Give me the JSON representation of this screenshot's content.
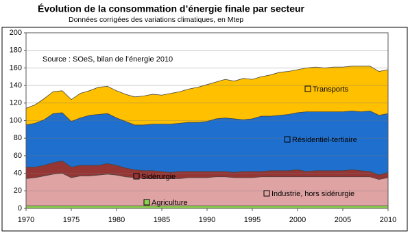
{
  "chart_data": {
    "type": "stacked_area",
    "title": "Évolution de la consommation d’énergie finale par secteur",
    "subtitle": "Données corrigées des variations climatiques, en Mtep",
    "annotation": "Source : SOeS, bilan de l’énergie 2010",
    "x": [
      1970,
      1971,
      1972,
      1973,
      1974,
      1975,
      1976,
      1977,
      1978,
      1979,
      1980,
      1981,
      1982,
      1983,
      1984,
      1985,
      1986,
      1987,
      1988,
      1989,
      1990,
      1991,
      1992,
      1993,
      1994,
      1995,
      1996,
      1997,
      1998,
      1999,
      2000,
      2001,
      2002,
      2003,
      2004,
      2005,
      2006,
      2007,
      2008,
      2009,
      2010
    ],
    "xlim": [
      1970,
      2010
    ],
    "xticks": [
      1970,
      1975,
      1980,
      1985,
      1990,
      1995,
      2000,
      2005,
      2010
    ],
    "ylim": [
      0,
      200
    ],
    "yticks": [
      0,
      20,
      40,
      60,
      80,
      100,
      120,
      140,
      160,
      180,
      200
    ],
    "grid": true,
    "series": [
      {
        "name": "Agriculture",
        "color": "#8fd14f",
        "values": [
          3,
          3,
          3,
          3,
          3,
          3,
          3,
          3,
          3,
          3,
          3,
          3,
          3,
          3,
          3,
          3,
          3,
          3,
          3,
          3,
          3,
          3,
          3,
          3,
          3,
          3,
          3,
          3,
          3,
          3,
          3,
          3,
          3,
          3,
          3,
          3,
          3,
          3,
          3,
          3,
          3
        ]
      },
      {
        "name": "Industrie, hors sidérurgie",
        "color": "#e0a3a3",
        "values": [
          31,
          32,
          34,
          36,
          37,
          32,
          34,
          34,
          35,
          36,
          35,
          33,
          32,
          31,
          31,
          31,
          31,
          31,
          32,
          32,
          32,
          33,
          33,
          32,
          32,
          32,
          33,
          33,
          33,
          33,
          33,
          33,
          33,
          33,
          33,
          33,
          33,
          33,
          33,
          30,
          32
        ]
      },
      {
        "name": "Sidérurgie",
        "color": "#963634",
        "values": [
          13,
          12,
          12,
          13,
          14,
          12,
          12,
          12,
          11,
          12,
          11,
          10,
          9,
          9,
          9,
          8,
          7,
          8,
          7,
          7,
          7,
          6,
          6,
          6,
          7,
          7,
          6,
          7,
          7,
          7,
          8,
          6,
          7,
          7,
          7,
          7,
          8,
          7,
          6,
          5,
          6
        ]
      },
      {
        "name": "Résidentiel-tertiaire",
        "color": "#1f6fce",
        "values": [
          48,
          50,
          52,
          56,
          55,
          52,
          54,
          57,
          58,
          57,
          54,
          53,
          51,
          52,
          53,
          54,
          55,
          55,
          56,
          56,
          57,
          60,
          61,
          61,
          59,
          60,
          63,
          62,
          63,
          64,
          65,
          68,
          67,
          67,
          67,
          67,
          67,
          67,
          69,
          68,
          67
        ]
      },
      {
        "name": "Transports",
        "color": "#ffc000",
        "values": [
          19,
          21,
          24,
          25,
          25,
          25,
          28,
          28,
          31,
          31,
          31,
          31,
          32,
          33,
          34,
          33,
          35,
          36,
          38,
          40,
          42,
          42,
          44,
          43,
          47,
          45,
          45,
          47,
          49,
          49,
          49,
          50,
          51,
          50,
          51,
          51,
          51,
          52,
          51,
          50,
          50
        ]
      }
    ]
  }
}
